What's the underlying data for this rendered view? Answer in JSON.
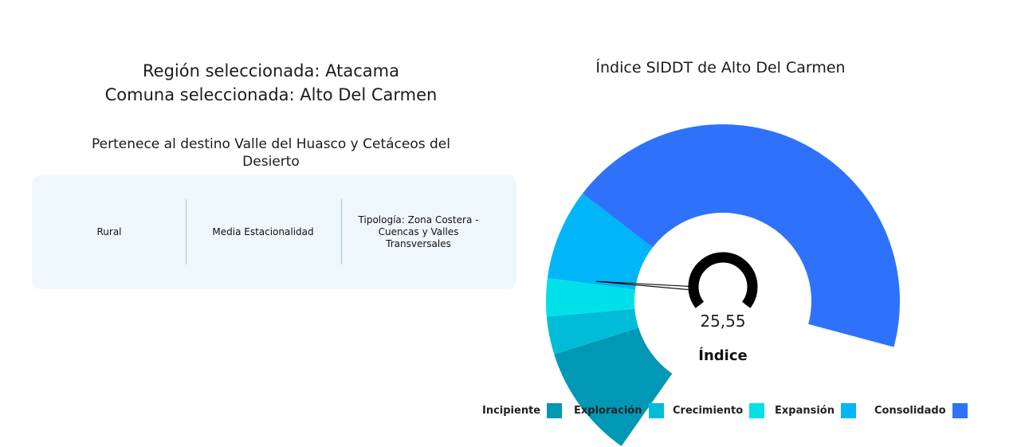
{
  "left": {
    "region_line": "Región seleccionada: Atacama",
    "comuna_line": "Comuna seleccionada: Alto Del Carmen",
    "destino": "Pertenece al destino Valle del Huasco y Cetáceos del Desierto",
    "card": {
      "cells": [
        "Rural",
        "Media Estacionalidad",
        "Tipología: Zona Costera -Cuencas y Valles Transversales"
      ]
    }
  },
  "gauge": {
    "title": "Índice SIDDT de Alto Del Carmen",
    "value": 25.55,
    "value_label": "25,55",
    "label": "Índice",
    "min": 0,
    "max": 100,
    "segments": [
      {
        "name": "Incipiente",
        "from": 0,
        "to": 15,
        "color": "#0098b4"
      },
      {
        "name": "Exploración",
        "from": 15,
        "to": 20,
        "color": "#00bcd9"
      },
      {
        "name": "Crecimiento",
        "from": 20,
        "to": 25,
        "color": "#00e0e8"
      },
      {
        "name": "Expansión",
        "from": 25,
        "to": 37,
        "color": "#00b6f8"
      },
      {
        "name": "Consolidado",
        "from": 37,
        "to": 100,
        "color": "#2e72fc"
      }
    ]
  },
  "legend": {
    "items": [
      {
        "label": "Incipiente",
        "color": "#0098b4"
      },
      {
        "label": "Exploración",
        "color": "#00bcd9"
      },
      {
        "label": "Crecimiento",
        "color": "#00e0e8"
      },
      {
        "label": "Expansión",
        "color": "#00b6f8"
      },
      {
        "label": "Consolidado",
        "color": "#2e72fc"
      }
    ]
  }
}
